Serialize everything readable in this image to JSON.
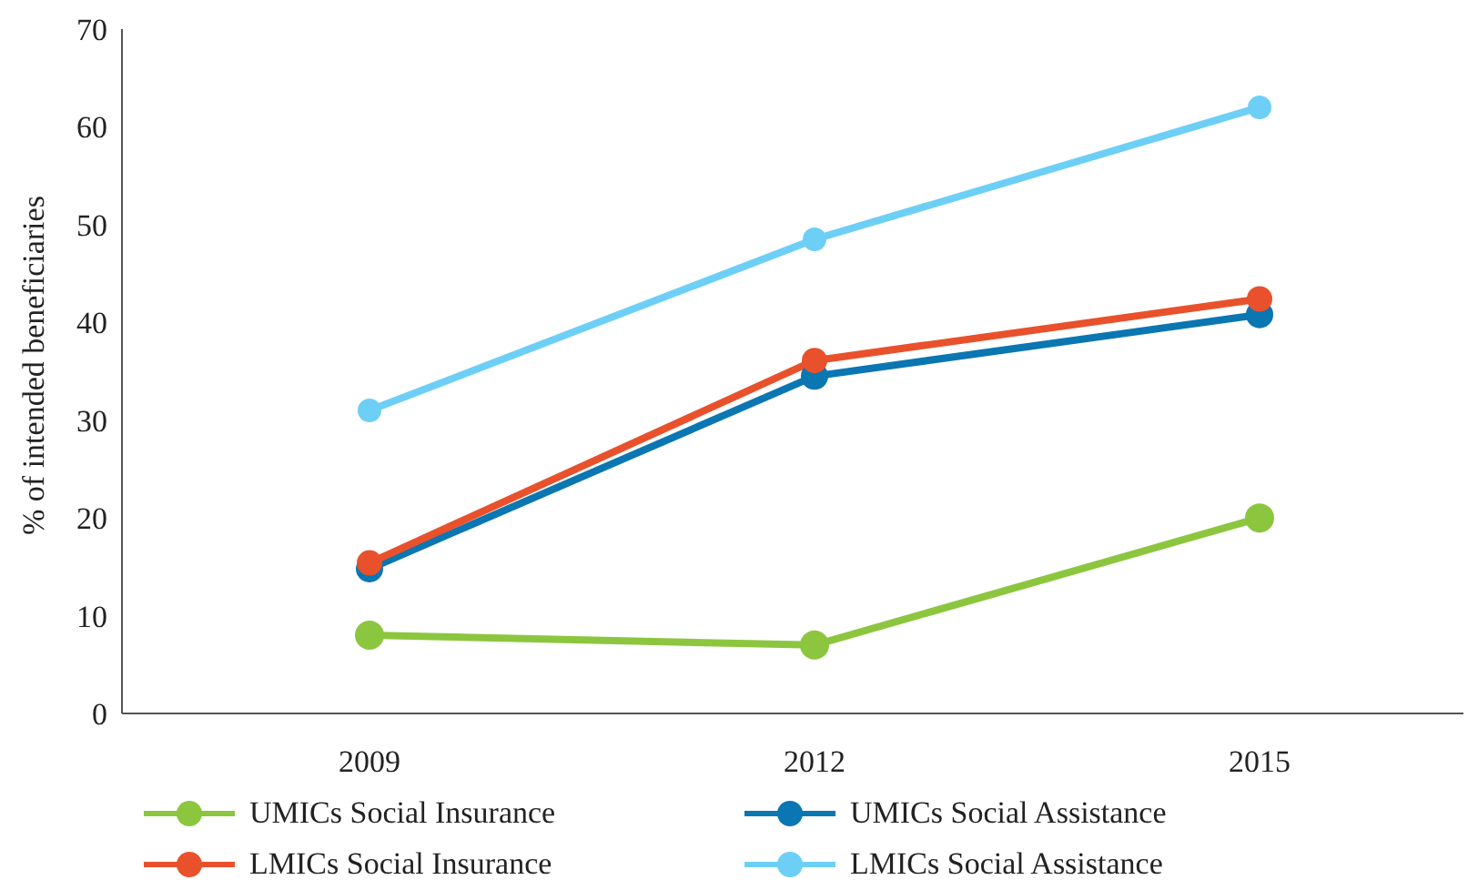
{
  "chart_data": {
    "type": "line",
    "ylabel": "% of intended beneficiaries",
    "categories": [
      "2009",
      "2012",
      "2015"
    ],
    "ylim": [
      0,
      70
    ],
    "yticks": [
      0,
      10,
      20,
      30,
      40,
      50,
      60,
      70
    ],
    "grid": false,
    "legend": "bottom",
    "marker": "circle",
    "line_style": "solid",
    "series": [
      {
        "name": "UMICs Social Insurance",
        "color": "#8cc63f",
        "values": [
          8,
          7,
          20
        ]
      },
      {
        "name": "UMICs Social Assistance",
        "color": "#0a76b2",
        "values": [
          14.8,
          34.5,
          40.8
        ]
      },
      {
        "name": "LMICs Social Insurance",
        "color": "#e8512c",
        "values": [
          15.4,
          36.1,
          42.4
        ]
      },
      {
        "name": "LMICs Social Assistance",
        "color": "#6dcff6",
        "values": [
          31,
          48.5,
          62
        ]
      }
    ]
  }
}
